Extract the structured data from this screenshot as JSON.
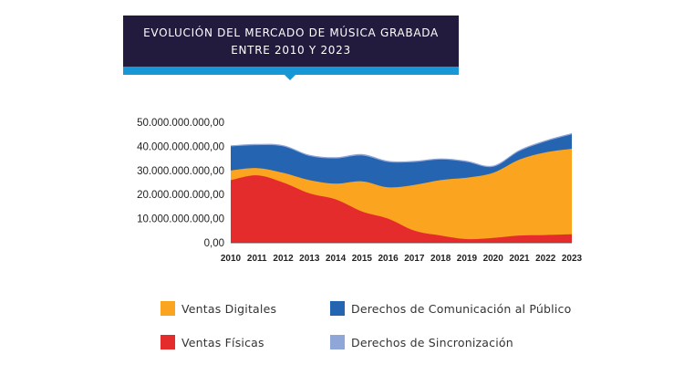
{
  "header": {
    "title_line1": "EVOLUCIÓN DEL MERCADO DE MÚSICA GRABADA",
    "title_line2": "ENTRE 2010 Y 2023",
    "bg_color": "#221b3d",
    "accent_color": "#1797d6"
  },
  "chart_data": {
    "type": "area",
    "stacked": true,
    "x": [
      "2010",
      "2011",
      "2012",
      "2013",
      "2014",
      "2015",
      "2016",
      "2017",
      "2018",
      "2019",
      "2020",
      "2021",
      "2022",
      "2023"
    ],
    "ylim": [
      0,
      50000000000
    ],
    "y_ticks": [
      "0,00",
      "10.000.000.000,00",
      "20.000.000.000,00",
      "30.000.000.000,00",
      "40.000.000.000,00",
      "50.000.000.000,00"
    ],
    "series": [
      {
        "name": "Ventas Físicas",
        "color": "#e52c2c",
        "values": [
          26000000000,
          28000000000,
          25000000000,
          20500000000,
          18000000000,
          13000000000,
          10000000000,
          5000000000,
          3000000000,
          1500000000,
          2000000000,
          3000000000,
          3200000000,
          3500000000
        ]
      },
      {
        "name": "Ventas Digitales",
        "color": "#fba41f",
        "values": [
          4000000000,
          3000000000,
          4000000000,
          5500000000,
          6500000000,
          12500000000,
          13000000000,
          19000000000,
          23000000000,
          25500000000,
          27000000000,
          31500000000,
          34300000000,
          35500000000
        ]
      },
      {
        "name": "Derechos de Comunicación al Público",
        "color": "#2564b0",
        "values": [
          10000000000,
          9500000000,
          11000000000,
          10000000000,
          10500000000,
          10700000000,
          10500000000,
          9500000000,
          8500000000,
          6500000000,
          2500000000,
          3500000000,
          4500000000,
          6000000000
        ]
      },
      {
        "name": "Derechos de Sincronización",
        "color": "#8fa6d8",
        "values": [
          400000000,
          500000000,
          500000000,
          500000000,
          500000000,
          600000000,
          500000000,
          500000000,
          500000000,
          500000000,
          500000000,
          500000000,
          500000000,
          500000000
        ]
      }
    ],
    "legend_position": "bottom",
    "grid": false
  }
}
